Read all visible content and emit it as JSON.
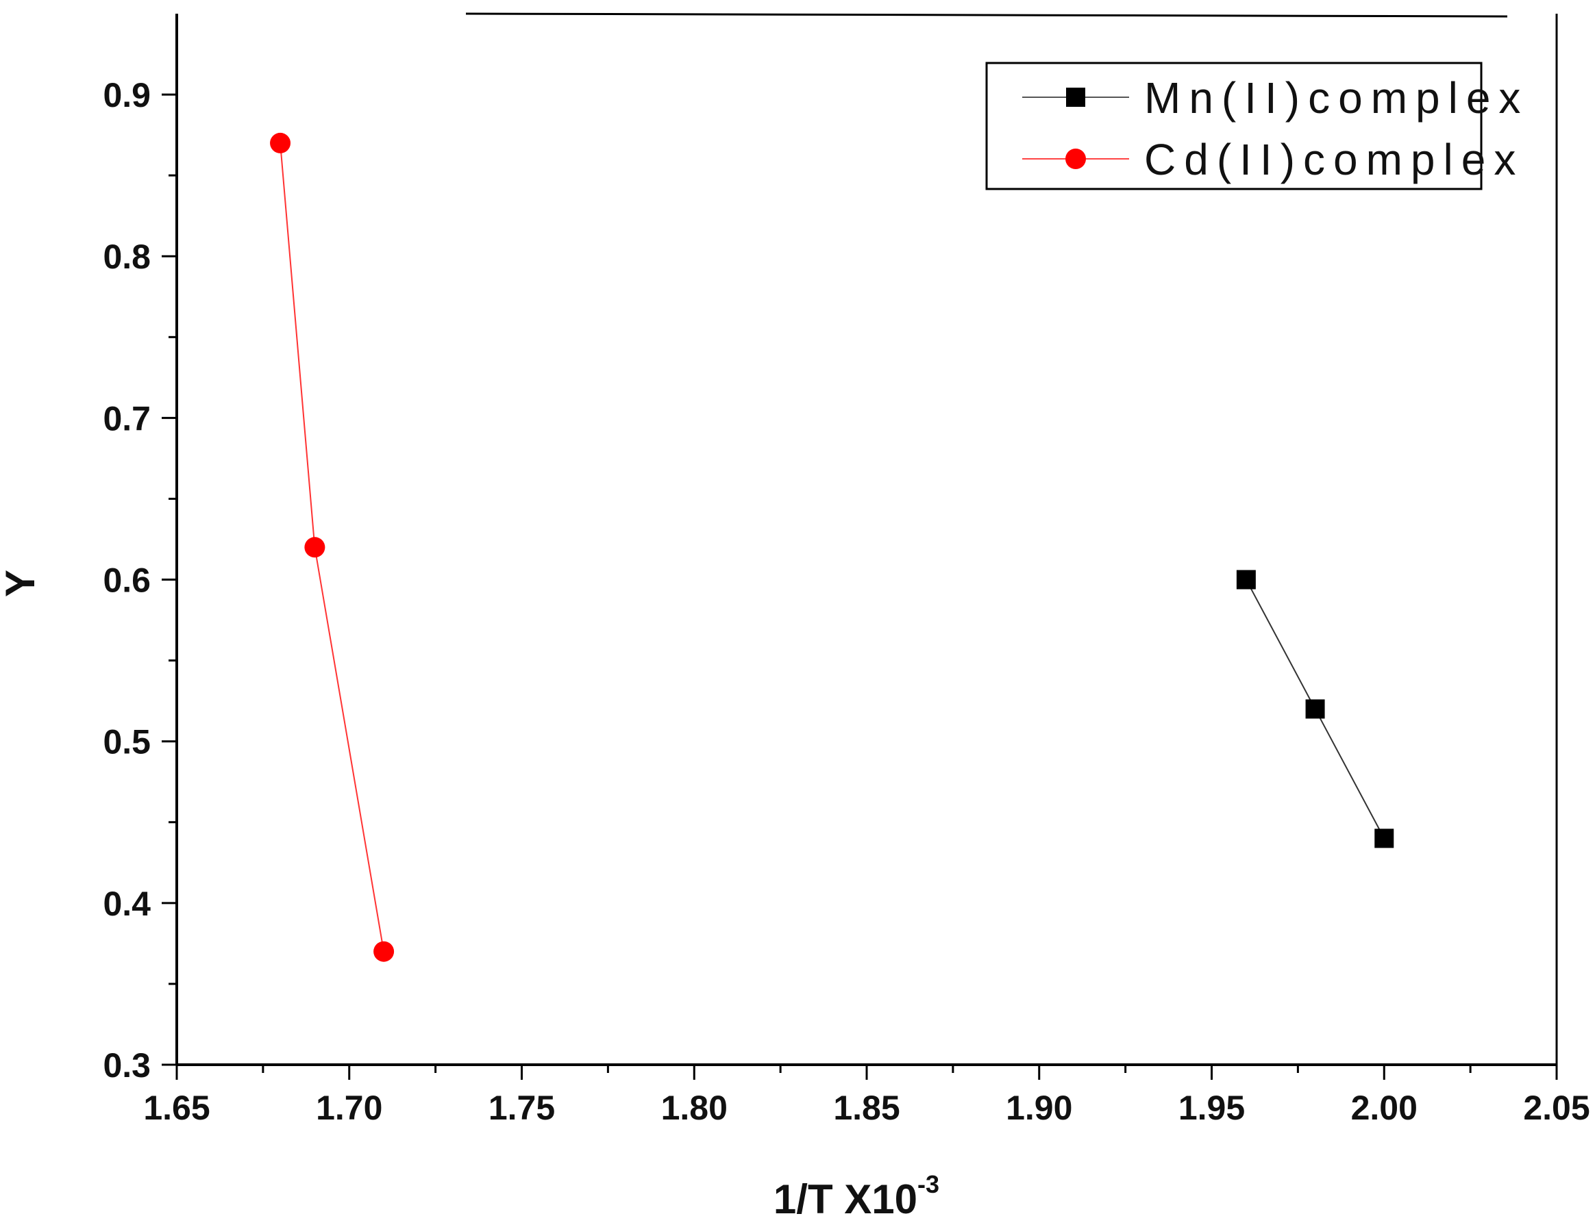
{
  "chart_data": {
    "type": "line",
    "title": "",
    "xlabel": "1/T X10",
    "xlabel_exponent": "-3",
    "ylabel": "Y",
    "xlim": [
      1.65,
      2.05
    ],
    "ylim": [
      0.3,
      0.95
    ],
    "x_ticks": [
      1.65,
      1.7,
      1.75,
      1.8,
      1.85,
      1.9,
      1.95,
      2.0,
      2.05
    ],
    "x_tick_labels": [
      "1.65",
      "1.70",
      "1.75",
      "1.80",
      "1.85",
      "1.90",
      "1.95",
      "2.00",
      "2.05"
    ],
    "y_ticks": [
      0.3,
      0.4,
      0.5,
      0.6,
      0.7,
      0.8,
      0.9
    ],
    "y_tick_labels": [
      "0.3",
      "0.4",
      "0.5",
      "0.6",
      "0.7",
      "0.8",
      "0.9"
    ],
    "grid": false,
    "legend_position": "top-right",
    "series": [
      {
        "name": "Mn(II)complex",
        "marker": "square",
        "color": "#000000",
        "x": [
          1.96,
          1.98,
          2.0
        ],
        "y": [
          0.6,
          0.52,
          0.44
        ]
      },
      {
        "name": "Cd(II)complex",
        "marker": "circle",
        "color": "#ff0000",
        "x": [
          1.68,
          1.69,
          1.71
        ],
        "y": [
          0.87,
          0.62,
          0.37
        ]
      }
    ]
  }
}
